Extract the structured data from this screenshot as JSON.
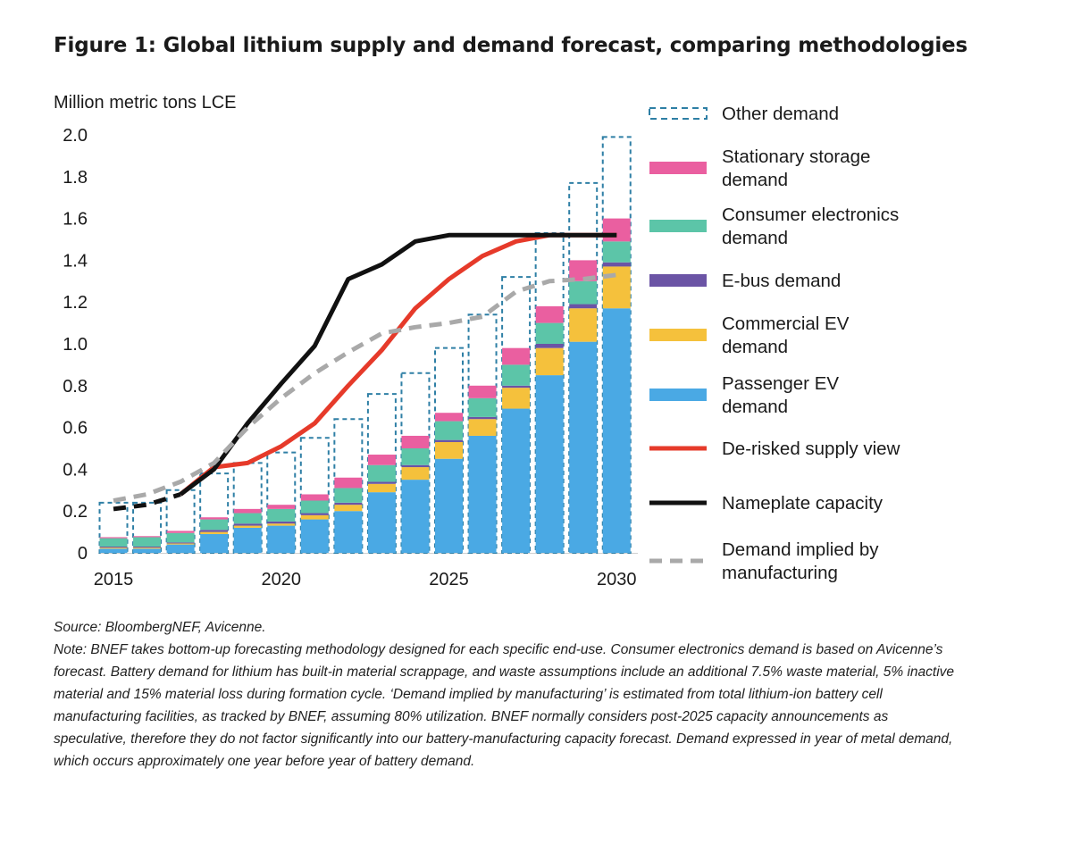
{
  "figure": {
    "title": "Figure 1: Global lithium supply and demand forecast, comparing methodologies",
    "source": "Source: BloombergNEF,  Avicenne.",
    "note": "Note: BNEF takes bottom-up forecasting methodology designed for each specific end-use. Consumer electronics demand is based on Avicenne’s forecast. Battery demand for lithium has built-in material scrappage, and waste assumptions include an additional 7.5% waste material, 5% inactive material and 15% material loss during formation cycle. ‘Demand implied by manufacturing’ is estimated from total lithium-ion battery cell manufacturing facilities, as tracked by BNEF, assuming 80% utilization. BNEF normally considers post-2025 capacity announcements as speculative, therefore they do not factor significantly into our battery-manufacturing capacity forecast. Demand expressed in year of metal demand, which occurs approximately one year before year of battery demand."
  },
  "chart_data": {
    "type": "bar",
    "stacked": true,
    "ylabel": "Million metric tons LCE",
    "ylim": [
      0,
      2.0
    ],
    "yticks": [
      0,
      0.2,
      0.4,
      0.6,
      0.8,
      1.0,
      1.2,
      1.4,
      1.6,
      1.8,
      2.0
    ],
    "ytick_labels": [
      "0",
      "0.2",
      "0.4",
      "0.6",
      "0.8",
      "1.0",
      "1.2",
      "1.4",
      "1.6",
      "1.8",
      "2.0"
    ],
    "x": [
      2015,
      2016,
      2017,
      2018,
      2019,
      2020,
      2021,
      2022,
      2023,
      2024,
      2025,
      2026,
      2027,
      2028,
      2029,
      2030
    ],
    "xticks": [
      2015,
      2020,
      2025,
      2030
    ],
    "xtick_labels": [
      "2015",
      "2020",
      "2025",
      "2030"
    ],
    "legend_position": "right",
    "grid": false,
    "series": [
      {
        "name": "Passenger EV demand",
        "kind": "bar",
        "color": "#4aa9e4",
        "values": [
          0.02,
          0.02,
          0.04,
          0.09,
          0.12,
          0.13,
          0.16,
          0.2,
          0.29,
          0.35,
          0.45,
          0.56,
          0.69,
          0.85,
          1.01,
          1.17
        ]
      },
      {
        "name": "Commercial EV demand",
        "kind": "bar",
        "color": "#f5c13c",
        "values": [
          0.005,
          0.005,
          0.005,
          0.01,
          0.01,
          0.01,
          0.02,
          0.03,
          0.04,
          0.06,
          0.08,
          0.08,
          0.1,
          0.13,
          0.16,
          0.2
        ]
      },
      {
        "name": "E-bus demand",
        "kind": "bar",
        "color": "#6b54a5",
        "values": [
          0.005,
          0.005,
          0.005,
          0.01,
          0.01,
          0.01,
          0.01,
          0.01,
          0.01,
          0.01,
          0.01,
          0.01,
          0.01,
          0.02,
          0.02,
          0.02
        ]
      },
      {
        "name": "Consumer electronics demand",
        "kind": "bar",
        "color": "#5cc5a8",
        "values": [
          0.04,
          0.045,
          0.045,
          0.05,
          0.05,
          0.06,
          0.06,
          0.07,
          0.08,
          0.08,
          0.09,
          0.09,
          0.1,
          0.1,
          0.11,
          0.1
        ]
      },
      {
        "name": "Stationary storage demand",
        "kind": "bar",
        "color": "#ea5fa0",
        "values": [
          0.005,
          0.005,
          0.01,
          0.01,
          0.02,
          0.02,
          0.03,
          0.05,
          0.05,
          0.06,
          0.04,
          0.06,
          0.08,
          0.08,
          0.1,
          0.11
        ]
      },
      {
        "name": "Other demand",
        "kind": "outline",
        "color": "#2e7fa5",
        "totals": [
          0.24,
          0.24,
          0.3,
          0.38,
          0.43,
          0.48,
          0.55,
          0.64,
          0.76,
          0.86,
          0.98,
          1.14,
          1.32,
          1.53,
          1.77,
          1.99
        ]
      },
      {
        "name": "De-risked supply view",
        "kind": "line",
        "color": "#e63a2a",
        "x": [
          2017,
          2018,
          2019,
          2020,
          2021,
          2022,
          2023,
          2024,
          2025,
          2026,
          2027,
          2028,
          2029,
          2030
        ],
        "values": [
          0.28,
          0.41,
          0.43,
          0.51,
          0.62,
          0.8,
          0.97,
          1.17,
          1.31,
          1.42,
          1.49,
          1.52,
          1.52,
          1.52
        ]
      },
      {
        "name": "Nameplate capacity",
        "kind": "line",
        "color": "#111111",
        "x": [
          2017,
          2018,
          2019,
          2020,
          2021,
          2022,
          2023,
          2024,
          2025,
          2026,
          2027,
          2028,
          2029,
          2030
        ],
        "values": [
          0.28,
          0.4,
          0.62,
          0.81,
          0.99,
          1.31,
          1.38,
          1.49,
          1.52,
          1.52,
          1.52,
          1.52,
          1.52,
          1.52
        ]
      },
      {
        "name": "Nameplate capacity (historical)",
        "kind": "dashed-line",
        "color": "#111111",
        "x": [
          2015,
          2016,
          2017
        ],
        "values": [
          0.21,
          0.23,
          0.28
        ]
      },
      {
        "name": "Demand implied by manufacturing",
        "kind": "dashed-line",
        "color": "#a9a9a9",
        "x": [
          2015,
          2016,
          2017,
          2018,
          2019,
          2020,
          2021,
          2022,
          2023,
          2024,
          2025,
          2026,
          2027,
          2028,
          2029,
          2030
        ],
        "values": [
          0.25,
          0.28,
          0.34,
          0.43,
          0.6,
          0.74,
          0.86,
          0.96,
          1.05,
          1.08,
          1.1,
          1.13,
          1.25,
          1.3,
          1.31,
          1.33
        ]
      }
    ],
    "legend": [
      {
        "key": "other",
        "symbol": "outline",
        "color": "#2e7fa5",
        "lines": [
          "Other demand"
        ]
      },
      {
        "key": "stationary",
        "symbol": "box",
        "color": "#ea5fa0",
        "lines": [
          "Stationary storage",
          "demand"
        ]
      },
      {
        "key": "consumer",
        "symbol": "box",
        "color": "#5cc5a8",
        "lines": [
          "Consumer electronics",
          "demand"
        ]
      },
      {
        "key": "ebus",
        "symbol": "box",
        "color": "#6b54a5",
        "lines": [
          "E-bus demand"
        ]
      },
      {
        "key": "commercial",
        "symbol": "box",
        "color": "#f5c13c",
        "lines": [
          "Commercial EV",
          "demand"
        ]
      },
      {
        "key": "passenger",
        "symbol": "box",
        "color": "#4aa9e4",
        "lines": [
          "Passenger EV",
          "demand"
        ]
      },
      {
        "key": "derisked",
        "symbol": "line",
        "color": "#e63a2a",
        "lines": [
          "De-risked supply view"
        ]
      },
      {
        "key": "nameplate",
        "symbol": "line",
        "color": "#111111",
        "lines": [
          "Nameplate capacity"
        ]
      },
      {
        "key": "implied",
        "symbol": "dashed",
        "color": "#a9a9a9",
        "lines": [
          "Demand implied by",
          "manufacturing"
        ]
      }
    ]
  }
}
